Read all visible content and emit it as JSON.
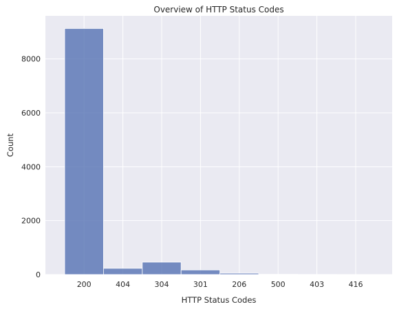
{
  "chart_data": {
    "type": "bar",
    "title": "Overview of HTTP Status Codes",
    "xlabel": "HTTP Status Codes",
    "ylabel": "Count",
    "categories": [
      "200",
      "404",
      "304",
      "301",
      "206",
      "500",
      "403",
      "416"
    ],
    "values": [
      9130,
      230,
      460,
      170,
      50,
      8,
      5,
      3
    ],
    "ylim": [
      0,
      9600
    ],
    "yticks": [
      "0",
      "2000",
      "4000",
      "6000",
      "8000"
    ],
    "ytick_values": [
      0,
      2000,
      4000,
      6000,
      8000
    ],
    "grid": true,
    "colors": {
      "bar": "#5975b4",
      "plot_background": "#eaeaf2",
      "grid": "#ffffff"
    }
  }
}
